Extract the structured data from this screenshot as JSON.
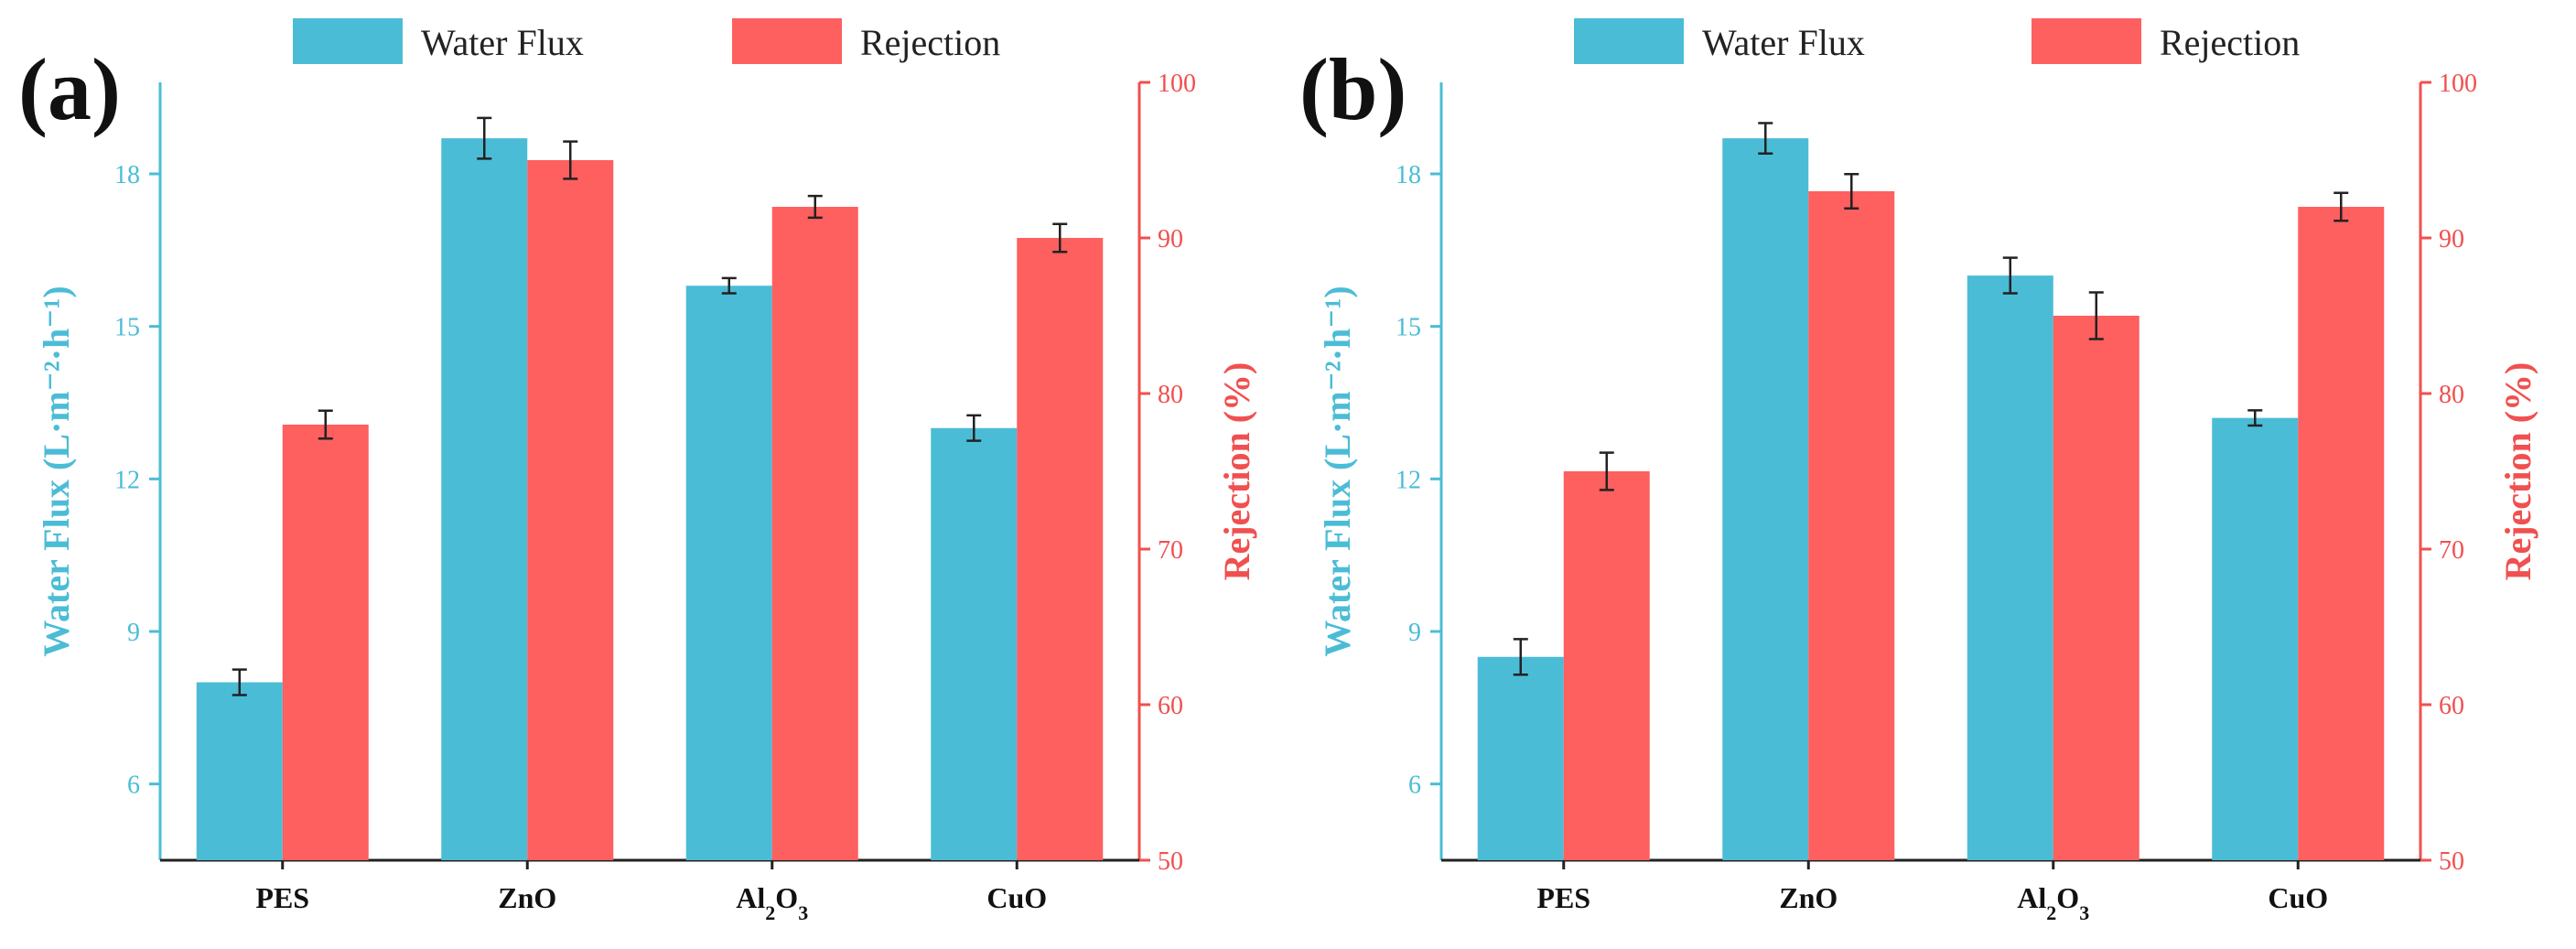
{
  "colors": {
    "flux": "#4bbcd6",
    "rejection": "#fe5f5f",
    "axis": "#222222",
    "flux_axis": "#4bbcd6",
    "rej_axis": "#f0504f"
  },
  "legend": {
    "flux_label": "Water Flux",
    "rejection_label": "Rejection"
  },
  "chart_data": [
    {
      "type": "bar",
      "panel": "(a)",
      "categories": [
        "PES",
        "ZnO",
        "Al2O3",
        "CuO"
      ],
      "category_html": [
        "PES",
        "ZnO",
        "Al<tspan baseline-shift='sub' font-size='22'>2</tspan>O<tspan baseline-shift='sub' font-size='22'>3</tspan>",
        "CuO"
      ],
      "series": [
        {
          "name": "Water Flux",
          "axis": "left",
          "values": [
            8.0,
            18.7,
            15.8,
            13.0
          ],
          "errors": [
            0.25,
            0.4,
            0.15,
            0.25
          ]
        },
        {
          "name": "Rejection",
          "axis": "right",
          "values": [
            78,
            95,
            92,
            90
          ],
          "errors": [
            0.9,
            1.2,
            0.7,
            0.9
          ]
        }
      ],
      "ylabel_left": "Water Flux (L·m⁻²·h⁻¹)",
      "ylabel_right": "Rejection (%)",
      "ylim_left": [
        4.5,
        19.8
      ],
      "yticks_left": [
        6,
        9,
        12,
        15,
        18
      ],
      "ylim_right": [
        50,
        100
      ],
      "yticks_right": [
        50,
        60,
        70,
        80,
        90,
        100
      ]
    },
    {
      "type": "bar",
      "panel": "(b)",
      "categories": [
        "PES",
        "ZnO",
        "Al2O3",
        "CuO"
      ],
      "category_html": [
        "PES",
        "ZnO",
        "Al<tspan baseline-shift='sub' font-size='22'>2</tspan>O<tspan baseline-shift='sub' font-size='22'>3</tspan>",
        "CuO"
      ],
      "series": [
        {
          "name": "Water Flux",
          "axis": "left",
          "values": [
            8.5,
            18.7,
            16.0,
            13.2
          ],
          "errors": [
            0.35,
            0.3,
            0.35,
            0.15
          ]
        },
        {
          "name": "Rejection",
          "axis": "right",
          "values": [
            75,
            93,
            85,
            92
          ],
          "errors": [
            1.2,
            1.1,
            1.5,
            0.9
          ]
        }
      ],
      "ylabel_left": "Water Flux (L·m⁻²·h⁻¹)",
      "ylabel_right": "Rejection (%)",
      "ylim_left": [
        4.5,
        19.8
      ],
      "yticks_left": [
        6,
        9,
        12,
        15,
        18
      ],
      "ylim_right": [
        50,
        100
      ],
      "yticks_right": [
        50,
        60,
        70,
        80,
        90,
        100
      ]
    }
  ]
}
